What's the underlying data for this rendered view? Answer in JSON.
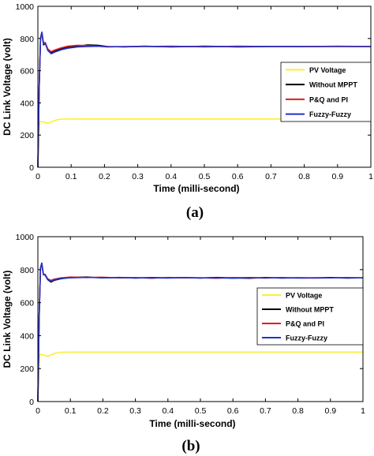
{
  "chart_data": [
    {
      "type": "line",
      "panel_label": "(a)",
      "xlabel": "Time (milli-second)",
      "ylabel": "DC Link Voltage (volt)",
      "xlim": [
        0,
        1
      ],
      "ylim": [
        0,
        1000
      ],
      "xticks": [
        0,
        0.1,
        0.2,
        0.3,
        0.4,
        0.5,
        0.6,
        0.7,
        0.8,
        0.9,
        1
      ],
      "xtick_labels": [
        "0",
        "0.1",
        "0.2",
        "0.3",
        "0.4",
        "0.5",
        "0.6",
        "0.7",
        "0.8",
        "0.9",
        "1"
      ],
      "yticks": [
        0,
        200,
        400,
        600,
        800,
        1000
      ],
      "ytick_labels": [
        "0",
        "200",
        "400",
        "600",
        "800",
        "1000"
      ],
      "grid": false,
      "legend_position": "right",
      "series": [
        {
          "name": "PV Voltage",
          "color": "#ffee33",
          "x": [
            0,
            0.005,
            0.01,
            0.02,
            0.03,
            0.04,
            0.05,
            0.06,
            0.07,
            0.1,
            0.2,
            0.4,
            0.6,
            0.8,
            1.0
          ],
          "y": [
            0,
            280,
            285,
            280,
            272,
            282,
            290,
            296,
            299,
            300,
            300,
            300,
            300,
            300,
            300
          ]
        },
        {
          "name": "Without MPPT",
          "color": "#000000",
          "x": [
            0,
            0.004,
            0.008,
            0.012,
            0.017,
            0.022,
            0.03,
            0.04,
            0.05,
            0.07,
            0.09,
            0.12,
            0.15,
            0.18,
            0.21,
            0.26,
            0.32,
            0.4,
            0.5,
            0.6,
            0.7,
            0.8,
            0.9,
            1.0
          ],
          "y": [
            0,
            500,
            800,
            835,
            760,
            770,
            730,
            712,
            720,
            735,
            745,
            752,
            760,
            758,
            750,
            748,
            752,
            748,
            752,
            748,
            750,
            750,
            751,
            750
          ]
        },
        {
          "name": "P&Q and PI",
          "color": "#e01c1c",
          "x": [
            0,
            0.004,
            0.008,
            0.012,
            0.017,
            0.022,
            0.03,
            0.04,
            0.05,
            0.07,
            0.09,
            0.12,
            0.15,
            0.18,
            0.21,
            0.26,
            0.32,
            0.4,
            0.5,
            0.6,
            0.7,
            0.8,
            0.9,
            1.0
          ],
          "y": [
            0,
            510,
            805,
            838,
            770,
            775,
            735,
            718,
            728,
            742,
            752,
            758,
            755,
            752,
            750,
            749,
            750,
            752,
            748,
            752,
            750,
            749,
            752,
            750
          ]
        },
        {
          "name": "Fuzzy-Fuzzy",
          "color": "#2233cc",
          "x": [
            0,
            0.004,
            0.008,
            0.012,
            0.017,
            0.022,
            0.03,
            0.04,
            0.05,
            0.07,
            0.09,
            0.12,
            0.15,
            0.18,
            0.21,
            0.26,
            0.32,
            0.4,
            0.5,
            0.6,
            0.7,
            0.8,
            0.9,
            1.0
          ],
          "y": [
            0,
            505,
            802,
            840,
            765,
            772,
            725,
            705,
            715,
            730,
            740,
            748,
            750,
            752,
            748,
            750,
            751,
            749,
            751,
            749,
            751,
            750,
            750,
            750
          ]
        }
      ]
    },
    {
      "type": "line",
      "panel_label": "(b)",
      "xlabel": "Time (milli-second)",
      "ylabel": "DC Link Voltage (volt)",
      "xlim": [
        0,
        1
      ],
      "ylim": [
        0,
        1000
      ],
      "xticks": [
        0,
        0.1,
        0.2,
        0.3,
        0.4,
        0.5,
        0.6,
        0.7,
        0.8,
        0.9,
        1
      ],
      "xtick_labels": [
        "0",
        "0.1",
        "0.2",
        "0.3",
        "0.4",
        "0.5",
        "0.6",
        "0.7",
        "0.8",
        "0.9",
        "1"
      ],
      "yticks": [
        0,
        200,
        400,
        600,
        800,
        1000
      ],
      "ytick_labels": [
        "0",
        "200",
        "400",
        "600",
        "800",
        "1000"
      ],
      "grid": false,
      "legend_position": "right",
      "series": [
        {
          "name": "PV Voltage",
          "color": "#ffee33",
          "x": [
            0,
            0.005,
            0.01,
            0.02,
            0.03,
            0.04,
            0.05,
            0.06,
            0.07,
            0.1,
            0.2,
            0.4,
            0.6,
            0.8,
            1.0
          ],
          "y": [
            0,
            280,
            286,
            282,
            274,
            283,
            291,
            296,
            299,
            300,
            300,
            300,
            300,
            300,
            300
          ]
        },
        {
          "name": "Without MPPT",
          "color": "#000000",
          "x": [
            0,
            0.004,
            0.008,
            0.012,
            0.017,
            0.022,
            0.03,
            0.04,
            0.05,
            0.07,
            0.1,
            0.15,
            0.2,
            0.25,
            0.3,
            0.35,
            0.4,
            0.45,
            0.5,
            0.55,
            0.6,
            0.65,
            0.7,
            0.75,
            0.8,
            0.85,
            0.9,
            0.95,
            1.0
          ],
          "y": [
            0,
            520,
            810,
            840,
            770,
            768,
            740,
            725,
            735,
            745,
            752,
            755,
            750,
            753,
            749,
            752,
            750,
            752,
            749,
            753,
            750,
            748,
            752,
            749,
            751,
            750,
            752,
            749,
            751
          ]
        },
        {
          "name": "P&Q and PI",
          "color": "#e01c1c",
          "x": [
            0,
            0.004,
            0.008,
            0.012,
            0.017,
            0.022,
            0.03,
            0.04,
            0.05,
            0.07,
            0.1,
            0.15,
            0.2,
            0.25,
            0.3,
            0.35,
            0.4,
            0.45,
            0.5,
            0.55,
            0.6,
            0.65,
            0.7,
            0.75,
            0.8,
            0.85,
            0.9,
            0.95,
            1.0
          ],
          "y": [
            0,
            515,
            808,
            836,
            768,
            772,
            745,
            735,
            742,
            750,
            755,
            752,
            754,
            750,
            752,
            748,
            753,
            750,
            751,
            748,
            752,
            751,
            749,
            752,
            750,
            749,
            750,
            752,
            750
          ]
        },
        {
          "name": "Fuzzy-Fuzzy",
          "color": "#2233cc",
          "x": [
            0,
            0.004,
            0.008,
            0.012,
            0.017,
            0.022,
            0.03,
            0.04,
            0.05,
            0.07,
            0.1,
            0.15,
            0.2,
            0.25,
            0.3,
            0.35,
            0.4,
            0.45,
            0.5,
            0.55,
            0.6,
            0.65,
            0.7,
            0.75,
            0.8,
            0.85,
            0.9,
            0.95,
            1.0
          ],
          "y": [
            0,
            518,
            806,
            838,
            772,
            770,
            742,
            730,
            738,
            748,
            750,
            753,
            751,
            752,
            750,
            751,
            749,
            752,
            750,
            751,
            748,
            752,
            750,
            751,
            749,
            751,
            750,
            751,
            750
          ]
        }
      ]
    }
  ]
}
